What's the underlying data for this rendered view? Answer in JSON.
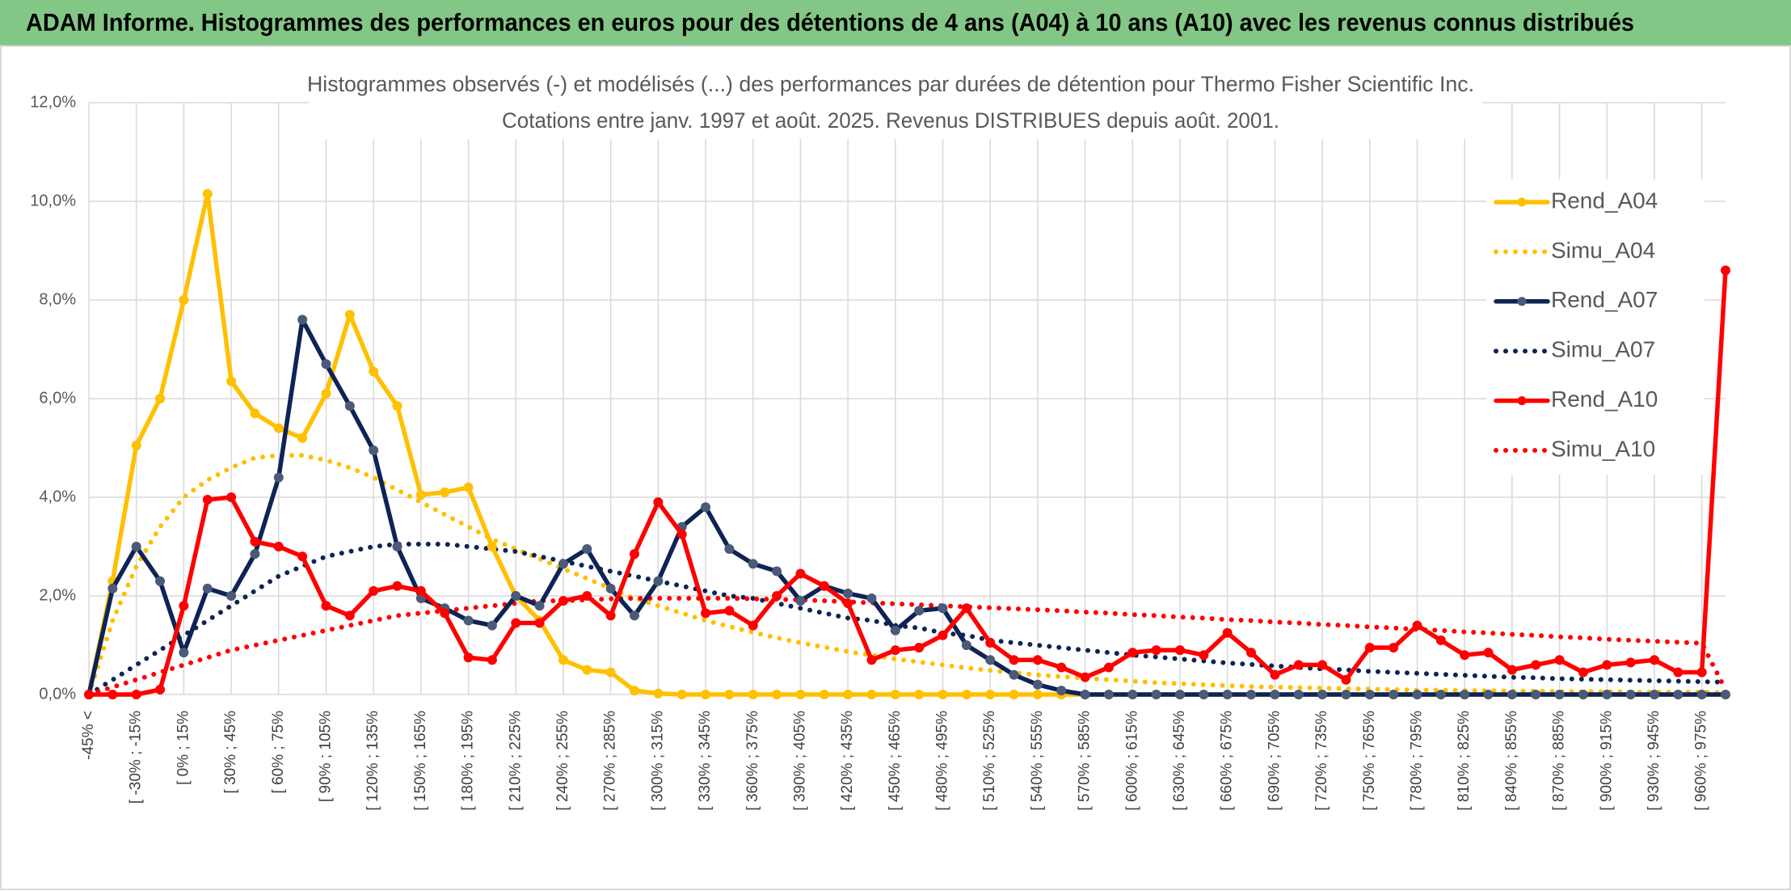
{
  "banner": "ADAM Informe. Histogrammes des performances en euros pour des détentions de 4 ans (A04) à 10 ans (A10) avec les revenus connus distribués",
  "chart_data": {
    "type": "line",
    "title": "Histogrammes observés (-) et modélisés (...) des performances par durées de détention pour Thermo Fisher Scientific Inc.",
    "subtitle": "Cotations entre janv. 1997 et août. 2025. Revenus DISTRIBUES depuis août. 2001.",
    "categories": [
      "-45% <",
      null,
      "[ -30% ; -15%",
      null,
      "[ 0% ; 15%",
      null,
      "[ 30% ; 45%",
      null,
      "[ 60% ; 75%",
      null,
      "[ 90% ; 105%",
      null,
      "[ 120% ; 135%",
      null,
      "[ 150% ; 165%",
      null,
      "[ 180% ; 195%",
      null,
      "[ 210% ; 225%",
      null,
      "[ 240% ; 255%",
      null,
      "[ 270% ; 285%",
      null,
      "[ 300% ; 315%",
      null,
      "[ 330% ; 345%",
      null,
      "[ 360% ; 375%",
      null,
      "[ 390% ; 405%",
      null,
      "[ 420% ; 435%",
      null,
      "[ 450% ; 465%",
      null,
      "[ 480% ; 495%",
      null,
      "[ 510% ; 525%",
      null,
      "[ 540% ; 555%",
      null,
      "[ 570% ; 585%",
      null,
      "[ 600% ; 615%",
      null,
      "[ 630% ; 645%",
      null,
      "[ 660% ; 675%",
      null,
      "[ 690% ; 705%",
      null,
      "[ 720% ; 735%",
      null,
      "[ 750% ; 765%",
      null,
      "[ 780% ; 795%",
      null,
      "[ 810% ; 825%",
      null,
      "[ 840% ; 855%",
      null,
      "[ 870% ; 885%",
      null,
      "[ 900% ; 915%",
      null,
      "[ 930% ; 945%",
      null,
      "[ 960% ; 975%",
      null
    ],
    "ylim": [
      0,
      12
    ],
    "yticks": [
      {
        "value": 0,
        "label": "0,0%"
      },
      {
        "value": 2,
        "label": "2,0%"
      },
      {
        "value": 4,
        "label": "4,0%"
      },
      {
        "value": 6,
        "label": "6,0%"
      },
      {
        "value": 8,
        "label": "8,0%"
      },
      {
        "value": 10,
        "label": "10,0%"
      },
      {
        "value": 12,
        "label": "12,0%"
      }
    ],
    "grid": true,
    "legend": "right",
    "series": [
      {
        "name": "Rend_A04",
        "color": "#ffc000",
        "line_style": "solid",
        "markers": true,
        "values": [
          0,
          2.3,
          5.05,
          6.0,
          8.0,
          10.15,
          6.35,
          5.7,
          5.4,
          5.2,
          6.1,
          7.7,
          6.55,
          5.85,
          4.05,
          4.1,
          4.2,
          3.0,
          2.0,
          1.5,
          0.7,
          0.5,
          0.45,
          0.08,
          0.02,
          0,
          0,
          0,
          0,
          0,
          0,
          0,
          0,
          0,
          0,
          0,
          0,
          0,
          0,
          0,
          0,
          0,
          0,
          0,
          0,
          0,
          0,
          0,
          0,
          0,
          0,
          0,
          0,
          0,
          0,
          0,
          0,
          0,
          0,
          0,
          0,
          0,
          0,
          0,
          0,
          0,
          0,
          0,
          0,
          0
        ]
      },
      {
        "name": "Simu_A04",
        "color": "#ffc000",
        "line_style": "dotted",
        "markers": false,
        "values": [
          0,
          1.5,
          2.6,
          3.4,
          4.0,
          4.35,
          4.6,
          4.8,
          4.85,
          4.85,
          4.75,
          4.6,
          4.4,
          4.15,
          3.9,
          3.65,
          3.4,
          3.15,
          2.95,
          2.75,
          2.55,
          2.35,
          2.15,
          1.95,
          1.8,
          1.65,
          1.5,
          1.38,
          1.26,
          1.15,
          1.05,
          0.96,
          0.87,
          0.8,
          0.72,
          0.66,
          0.6,
          0.54,
          0.49,
          0.44,
          0.4,
          0.36,
          0.33,
          0.3,
          0.27,
          0.24,
          0.22,
          0.2,
          0.18,
          0.16,
          0.15,
          0.14,
          0.13,
          0.12,
          0.11,
          0.1,
          0.09,
          0.09,
          0.08,
          0.08,
          0.07,
          0.07,
          0.06,
          0.06,
          0.06,
          0.05,
          0.05,
          0.05,
          0.05,
          0.04
        ]
      },
      {
        "name": "Rend_A07",
        "color": "#0e2356",
        "marker_color": "#4b5a78",
        "line_style": "solid",
        "markers": true,
        "values": [
          0,
          2.15,
          3.0,
          2.3,
          0.85,
          2.15,
          2.0,
          2.85,
          4.4,
          7.6,
          6.7,
          5.85,
          4.95,
          3.0,
          1.95,
          1.75,
          1.5,
          1.4,
          2.0,
          1.8,
          2.65,
          2.95,
          2.15,
          1.6,
          2.3,
          3.4,
          3.8,
          2.95,
          2.65,
          2.5,
          1.9,
          2.2,
          2.05,
          1.95,
          1.3,
          1.7,
          1.75,
          1.0,
          0.7,
          0.4,
          0.2,
          0.08,
          0,
          0,
          0,
          0,
          0,
          0,
          0,
          0,
          0,
          0,
          0,
          0,
          0,
          0,
          0,
          0,
          0,
          0,
          0,
          0,
          0,
          0,
          0,
          0,
          0,
          0,
          0,
          0
        ]
      },
      {
        "name": "Simu_A07",
        "color": "#0e2356",
        "line_style": "dotted",
        "markers": false,
        "values": [
          0,
          0.3,
          0.6,
          0.9,
          1.2,
          1.5,
          1.8,
          2.1,
          2.4,
          2.6,
          2.8,
          2.9,
          3.0,
          3.05,
          3.05,
          3.05,
          3.0,
          2.95,
          2.9,
          2.8,
          2.7,
          2.6,
          2.5,
          2.4,
          2.3,
          2.2,
          2.1,
          2.0,
          1.95,
          1.85,
          1.75,
          1.65,
          1.55,
          1.5,
          1.4,
          1.35,
          1.25,
          1.2,
          1.1,
          1.05,
          1.0,
          0.95,
          0.9,
          0.85,
          0.8,
          0.76,
          0.72,
          0.68,
          0.64,
          0.61,
          0.58,
          0.55,
          0.52,
          0.5,
          0.47,
          0.45,
          0.43,
          0.41,
          0.39,
          0.37,
          0.35,
          0.34,
          0.32,
          0.31,
          0.3,
          0.29,
          0.28,
          0.27,
          0.26,
          0.25
        ]
      },
      {
        "name": "Rend_A10",
        "color": "#ff0000",
        "line_style": "solid",
        "markers": true,
        "values": [
          0,
          0,
          0,
          0.1,
          1.8,
          3.95,
          4.0,
          3.1,
          3.0,
          2.8,
          1.8,
          1.6,
          2.1,
          2.2,
          2.1,
          1.65,
          0.75,
          0.7,
          1.45,
          1.45,
          1.9,
          2.0,
          1.6,
          2.85,
          3.9,
          3.25,
          1.65,
          1.7,
          1.4,
          2.0,
          2.45,
          2.2,
          1.85,
          0.7,
          0.9,
          0.95,
          1.2,
          1.75,
          1.05,
          0.7,
          0.7,
          0.55,
          0.35,
          0.55,
          0.85,
          0.9,
          0.9,
          0.8,
          1.25,
          0.85,
          0.4,
          0.6,
          0.6,
          0.3,
          0.95,
          0.95,
          1.4,
          1.1,
          0.8,
          0.85,
          0.5,
          0.6,
          0.7,
          0.45,
          0.6,
          0.65,
          0.7,
          0.45,
          0.45,
          8.6
        ]
      },
      {
        "name": "Simu_A10",
        "color": "#ff0000",
        "line_style": "dotted",
        "markers": false,
        "values": [
          0,
          0.15,
          0.3,
          0.45,
          0.6,
          0.75,
          0.9,
          1.0,
          1.1,
          1.2,
          1.3,
          1.4,
          1.5,
          1.6,
          1.65,
          1.7,
          1.75,
          1.8,
          1.85,
          1.9,
          1.9,
          1.92,
          1.94,
          1.95,
          1.95,
          1.95,
          1.95,
          1.95,
          1.94,
          1.93,
          1.92,
          1.9,
          1.88,
          1.86,
          1.84,
          1.82,
          1.8,
          1.78,
          1.76,
          1.74,
          1.72,
          1.7,
          1.67,
          1.65,
          1.62,
          1.6,
          1.57,
          1.55,
          1.52,
          1.5,
          1.47,
          1.45,
          1.42,
          1.4,
          1.37,
          1.35,
          1.32,
          1.3,
          1.27,
          1.25,
          1.22,
          1.2,
          1.17,
          1.15,
          1.12,
          1.1,
          1.08,
          1.06,
          1.04,
          0.1
        ]
      }
    ]
  }
}
